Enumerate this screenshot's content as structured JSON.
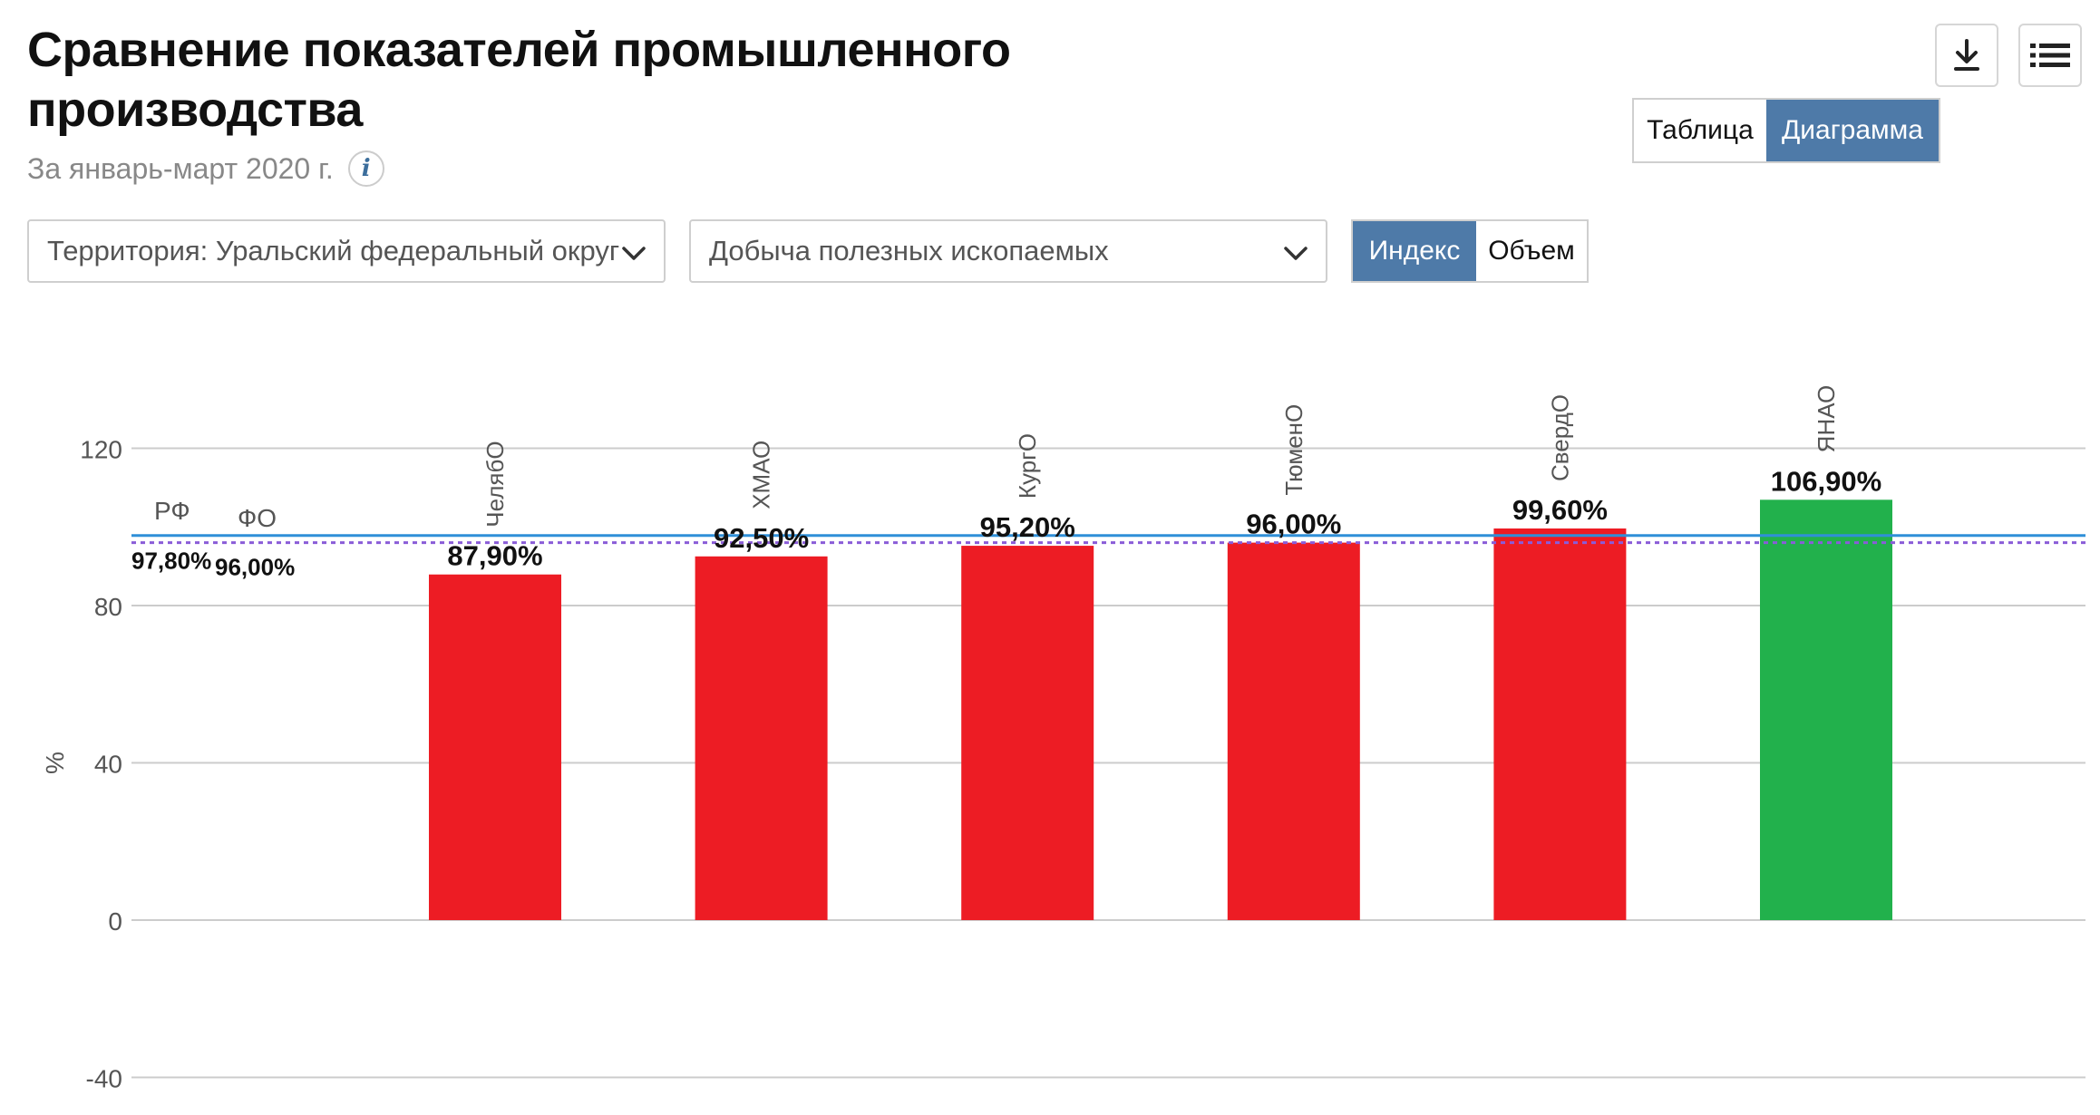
{
  "header": {
    "title": "Сравнение показателей промышленного производства",
    "subtitle": "За январь-март 2020 г.",
    "info_icon": "i"
  },
  "toolbar": {
    "download_icon": "download-icon",
    "menu_icon": "list-icon"
  },
  "view_toggle": {
    "table_label": "Таблица",
    "chart_label": "Диаграмма",
    "active": "Диаграмма"
  },
  "filters": {
    "territory": "Территория: Уральский федеральный округ",
    "indicator": "Добыча полезных ископаемых"
  },
  "mode_toggle": {
    "index_label": "Индекс",
    "volume_label": "Объем",
    "active": "Индекс"
  },
  "colors": {
    "accent": "#4e7aa8",
    "below": "#ed1c24",
    "above": "#22b14c",
    "rf_line": "#2f8fd8",
    "fo_line": "#8a5cd8"
  },
  "chart_data": {
    "type": "bar",
    "ylabel": "%",
    "ylim": [
      -40,
      120
    ],
    "yticks": [
      120,
      80,
      40,
      0,
      -40
    ],
    "grid": true,
    "categories": [
      "ЧелябО",
      "ХМАО",
      "КургО",
      "ТюменО",
      "СвердО",
      "ЯНАО"
    ],
    "values": [
      87.9,
      92.5,
      95.2,
      96.0,
      99.6,
      106.9
    ],
    "value_labels": [
      "87,90%",
      "92,50%",
      "95,20%",
      "96,00%",
      "99,60%",
      "106,90%"
    ],
    "bar_colors": [
      "#ed1c24",
      "#ed1c24",
      "#ed1c24",
      "#ed1c24",
      "#ed1c24",
      "#22b14c"
    ],
    "reference_lines": [
      {
        "name": "РФ",
        "value": 97.8,
        "label": "97,80%",
        "style": "solid",
        "color": "#2f8fd8"
      },
      {
        "name": "ФО",
        "value": 96.0,
        "label": "96,00%",
        "style": "dotted",
        "color": "#8a5cd8"
      }
    ]
  }
}
